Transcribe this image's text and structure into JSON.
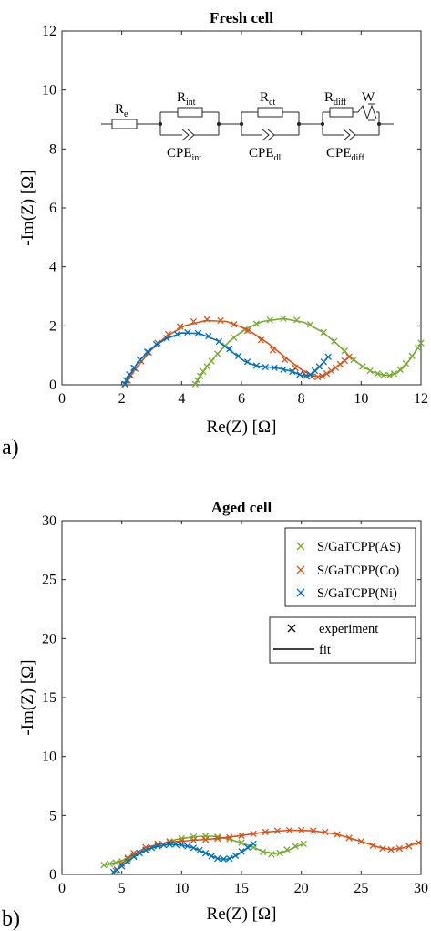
{
  "chart_data": [
    {
      "type": "scatter",
      "panel_label": "a)",
      "title": "Fresh cell",
      "xlabel": "Re(Z) [Ω]",
      "ylabel": "-Im(Z) [Ω]",
      "xlim": [
        0,
        12
      ],
      "ylim": [
        0,
        12
      ],
      "xticks": [
        0,
        2,
        4,
        6,
        8,
        10,
        12
      ],
      "yticks": [
        0,
        2,
        4,
        6,
        8,
        10,
        12
      ],
      "grid": false,
      "legend": null,
      "circuit": {
        "elements": [
          {
            "base": "R",
            "sub": "e",
            "pos": "top"
          },
          {
            "base": "R",
            "sub": "int",
            "pos": "top"
          },
          {
            "base": "CPE",
            "sub": "int",
            "pos": "bottom"
          },
          {
            "base": "R",
            "sub": "ct",
            "pos": "top"
          },
          {
            "base": "CPE",
            "sub": "dl",
            "pos": "bottom"
          },
          {
            "base": "R",
            "sub": "diff",
            "pos": "top"
          },
          {
            "base": "W",
            "sub": "",
            "pos": "top"
          },
          {
            "base": "CPE",
            "sub": "diff",
            "pos": "bottom"
          }
        ]
      },
      "series": [
        {
          "name": "S/GaTCPP(AS)",
          "color": "#77ac30",
          "experiment": {
            "x": [
              4.46,
              4.53,
              4.62,
              4.72,
              4.85,
              5.0,
              5.2,
              5.45,
              5.75,
              6.1,
              6.5,
              6.95,
              7.4,
              7.85,
              8.3,
              8.75,
              9.1,
              9.45,
              9.75,
              10.05,
              10.3,
              10.55,
              10.75,
              10.95,
              11.1,
              11.3,
              11.5,
              11.7,
              11.9,
              12.0
            ],
            "y": [
              0.02,
              0.15,
              0.3,
              0.45,
              0.62,
              0.8,
              1.05,
              1.33,
              1.6,
              1.87,
              2.07,
              2.2,
              2.25,
              2.2,
              2.05,
              1.78,
              1.48,
              1.15,
              0.85,
              0.62,
              0.48,
              0.38,
              0.33,
              0.32,
              0.38,
              0.52,
              0.72,
              0.98,
              1.25,
              1.42
            ]
          },
          "fit": {
            "x": [
              4.46,
              4.55,
              4.7,
              4.9,
              5.2,
              5.6,
              6.1,
              6.7,
              7.4,
              8.1,
              8.7,
              9.2,
              9.6,
              10.0,
              10.35,
              10.7,
              10.95,
              11.2,
              11.45,
              11.7,
              12.0
            ],
            "y": [
              0.0,
              0.18,
              0.42,
              0.7,
              1.05,
              1.48,
              1.88,
              2.15,
              2.25,
              2.12,
              1.8,
              1.38,
              0.98,
              0.66,
              0.45,
              0.34,
              0.32,
              0.4,
              0.62,
              0.95,
              1.42
            ]
          }
        },
        {
          "name": "S/GaTCPP(Co)",
          "color": "#d95319",
          "experiment": {
            "x": [
              2.12,
              2.2,
              2.3,
              2.45,
              2.65,
              2.9,
              3.2,
              3.55,
              3.95,
              4.4,
              4.85,
              5.3,
              5.75,
              6.2,
              6.65,
              7.05,
              7.45,
              7.8,
              8.1,
              8.35,
              8.55,
              8.7,
              8.85,
              9.0,
              9.15,
              9.3,
              9.45,
              9.6
            ],
            "y": [
              0.02,
              0.15,
              0.32,
              0.55,
              0.8,
              1.1,
              1.42,
              1.72,
              1.98,
              2.15,
              2.22,
              2.18,
              2.05,
              1.83,
              1.52,
              1.18,
              0.85,
              0.57,
              0.38,
              0.28,
              0.26,
              0.3,
              0.38,
              0.48,
              0.58,
              0.7,
              0.82,
              0.95
            ]
          },
          "fit": {
            "x": [
              2.12,
              2.3,
              2.6,
              3.0,
              3.5,
              4.1,
              4.8,
              5.5,
              6.2,
              6.9,
              7.5,
              8.0,
              8.4,
              8.7,
              9.0,
              9.3,
              9.6
            ],
            "y": [
              0.0,
              0.32,
              0.72,
              1.2,
              1.65,
              2.0,
              2.18,
              2.15,
              1.88,
              1.4,
              0.9,
              0.52,
              0.3,
              0.28,
              0.46,
              0.7,
              0.95
            ]
          }
        },
        {
          "name": "S/GaTCPP(Ni)",
          "color": "#0072bd",
          "experiment": {
            "x": [
              2.1,
              2.15,
              2.25,
              2.4,
              2.6,
              2.85,
              3.15,
              3.5,
              3.85,
              4.2,
              4.55,
              4.9,
              5.25,
              5.6,
              5.9,
              6.2,
              6.5,
              6.8,
              7.1,
              7.4,
              7.7,
              7.95,
              8.15,
              8.3,
              8.45,
              8.6,
              8.75,
              8.9
            ],
            "y": [
              0.02,
              0.15,
              0.35,
              0.58,
              0.85,
              1.12,
              1.38,
              1.58,
              1.72,
              1.78,
              1.75,
              1.65,
              1.47,
              1.22,
              0.98,
              0.78,
              0.65,
              0.6,
              0.58,
              0.52,
              0.45,
              0.35,
              0.3,
              0.35,
              0.48,
              0.62,
              0.78,
              0.95
            ]
          },
          "fit": {
            "x": [
              2.1,
              2.25,
              2.55,
              2.95,
              3.45,
              4.0,
              4.6,
              5.2,
              5.7,
              6.1,
              6.5,
              6.9,
              7.3,
              7.7,
              8.0,
              8.3,
              8.6,
              8.9
            ],
            "y": [
              0.0,
              0.32,
              0.78,
              1.2,
              1.55,
              1.76,
              1.74,
              1.5,
              1.1,
              0.8,
              0.64,
              0.6,
              0.55,
              0.45,
              0.32,
              0.32,
              0.6,
              0.95
            ]
          }
        }
      ]
    },
    {
      "type": "scatter",
      "panel_label": "b)",
      "title": "Aged cell",
      "xlabel": "Re(Z) [Ω]",
      "ylabel": "-Im(Z) [Ω]",
      "xlim": [
        0,
        30
      ],
      "ylim": [
        0,
        30
      ],
      "xticks": [
        0,
        5,
        10,
        15,
        20,
        25,
        30
      ],
      "yticks": [
        0,
        5,
        10,
        15,
        20,
        25,
        30
      ],
      "grid": false,
      "legend": {
        "placement": "top-right",
        "entries": [
          "S/GaTCPP(AS)",
          "S/GaTCPP(Co)",
          "S/GaTCPP(Ni)"
        ],
        "style_entries": [
          "experiment",
          "fit"
        ]
      },
      "series": [
        {
          "name": "S/GaTCPP(AS)",
          "color": "#77ac30",
          "experiment": {
            "x": [
              3.5,
              4.0,
              4.5,
              5.0,
              5.5,
              6.0,
              7.0,
              8.0,
              9.0,
              10.0,
              11.0,
              12.0,
              13.0,
              14.0,
              15.0,
              16.0,
              16.8,
              17.5,
              18.2,
              18.8,
              19.5,
              20.2
            ],
            "y": [
              0.8,
              0.9,
              1.0,
              1.1,
              1.3,
              1.6,
              2.1,
              2.5,
              2.8,
              3.05,
              3.2,
              3.25,
              3.2,
              3.0,
              2.7,
              2.3,
              1.9,
              1.7,
              1.8,
              2.1,
              2.4,
              2.6
            ]
          },
          "fit": {
            "x": [
              3.5,
              4.5,
              5.5,
              6.5,
              8.0,
              9.5,
              11.0,
              12.5,
              14.0,
              15.5,
              16.8,
              17.8,
              18.8,
              19.8,
              20.2
            ],
            "y": [
              0.8,
              1.0,
              1.35,
              1.85,
              2.5,
              2.95,
              3.2,
              3.25,
              3.0,
              2.5,
              1.95,
              1.75,
              2.0,
              2.45,
              2.6
            ]
          }
        },
        {
          "name": "S/GaTCPP(Co)",
          "color": "#d95319",
          "experiment": {
            "x": [
              4.5,
              5.0,
              5.5,
              6.0,
              7.0,
              8.0,
              9.0,
              10.0,
              11.0,
              12.0,
              13.0,
              14.0,
              15.0,
              16.0,
              17.0,
              18.0,
              19.0,
              20.0,
              21.0,
              22.0,
              23.0,
              24.0,
              25.0,
              26.0,
              26.8,
              27.5,
              28.2,
              29.0,
              29.8
            ],
            "y": [
              0.3,
              0.9,
              1.4,
              1.8,
              2.3,
              2.6,
              2.75,
              2.85,
              2.9,
              2.95,
              3.05,
              3.15,
              3.3,
              3.45,
              3.6,
              3.7,
              3.75,
              3.75,
              3.7,
              3.6,
              3.4,
              3.1,
              2.8,
              2.45,
              2.2,
              2.1,
              2.2,
              2.4,
              2.7
            ]
          },
          "fit": {
            "x": [
              4.5,
              5.5,
              7.0,
              9.0,
              11.0,
              13.0,
              15.0,
              17.0,
              19.0,
              21.0,
              23.0,
              25.0,
              26.5,
              27.5,
              28.5,
              29.8
            ],
            "y": [
              0.3,
              1.4,
              2.3,
              2.75,
              2.9,
              3.05,
              3.3,
              3.6,
              3.75,
              3.7,
              3.4,
              2.8,
              2.3,
              2.1,
              2.25,
              2.7
            ]
          }
        },
        {
          "name": "S/GaTCPP(Ni)",
          "color": "#0072bd",
          "experiment": {
            "x": [
              4.3,
              4.6,
              5.0,
              5.5,
              6.0,
              6.5,
              7.0,
              7.5,
              8.0,
              8.5,
              9.0,
              9.5,
              10.0,
              10.5,
              11.0,
              11.5,
              12.0,
              12.5,
              13.0,
              13.5,
              14.0,
              14.5,
              15.0,
              15.5,
              16.0
            ],
            "y": [
              0.2,
              0.4,
              0.7,
              1.1,
              1.5,
              1.8,
              2.05,
              2.25,
              2.4,
              2.5,
              2.55,
              2.55,
              2.5,
              2.4,
              2.25,
              2.05,
              1.8,
              1.55,
              1.35,
              1.3,
              1.35,
              1.6,
              1.95,
              2.3,
              2.6
            ]
          },
          "fit": {
            "x": [
              4.3,
              5.0,
              6.0,
              7.0,
              8.0,
              9.0,
              10.0,
              11.0,
              12.0,
              13.0,
              13.8,
              14.5,
              15.2,
              16.0
            ],
            "y": [
              0.2,
              0.7,
              1.5,
              2.05,
              2.4,
              2.55,
              2.5,
              2.25,
              1.8,
              1.35,
              1.28,
              1.55,
              2.0,
              2.6
            ]
          }
        }
      ]
    }
  ]
}
